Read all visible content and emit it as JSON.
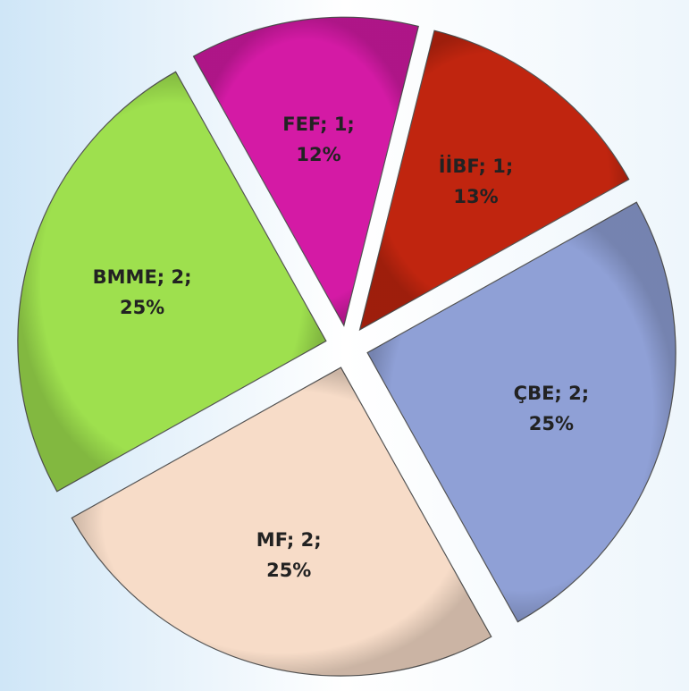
{
  "chart_data": {
    "type": "pie",
    "categories": [
      "İİBF",
      "ÇBE",
      "MF",
      "BMME",
      "FEF"
    ],
    "values": [
      13,
      25,
      25,
      25,
      12
    ],
    "value_labels": [
      "İİBF; 1; 13%",
      "ÇBE; 2; 25%",
      "MF; 2; 25%",
      "BMME; 2; 25%",
      "FEF; 1; 12%"
    ],
    "colors": [
      "#c0250f",
      "#8fa0d6",
      "#f7dcc8",
      "#9ee04e",
      "#d41aa5"
    ]
  }
}
